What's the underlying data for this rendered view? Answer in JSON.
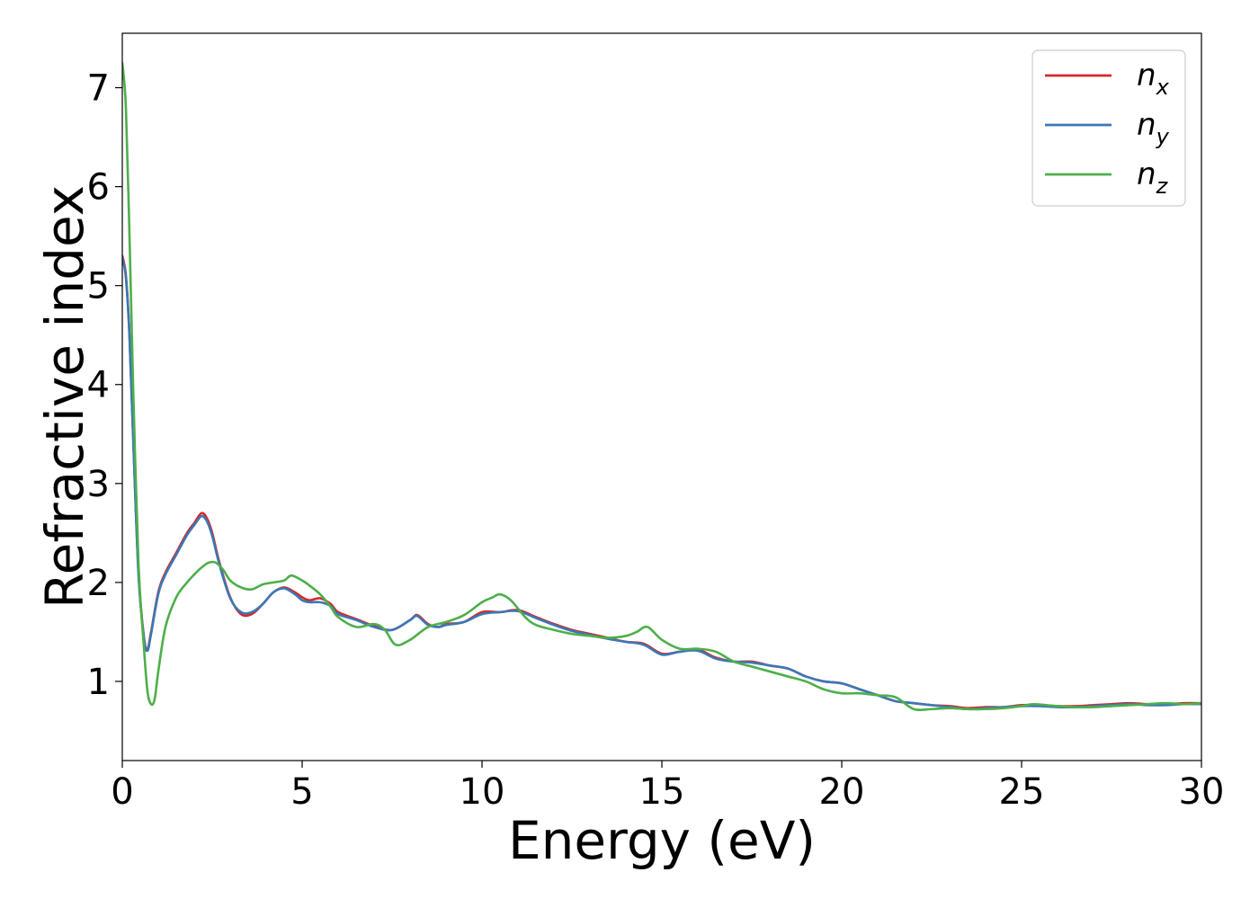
{
  "chart_data": {
    "type": "line",
    "xlabel": "Energy (eV)",
    "ylabel": "Refractive index",
    "xlim": [
      0,
      30
    ],
    "ylim": [
      0.2,
      7.55
    ],
    "xticks": [
      0,
      5,
      10,
      15,
      20,
      25,
      30
    ],
    "yticks": [
      1,
      2,
      3,
      4,
      5,
      6,
      7
    ],
    "grid": false,
    "legend_position": "top-right",
    "series": [
      {
        "name": "n_x",
        "name_main": "n",
        "name_sub": "x",
        "color": "#d62728",
        "x": [
          0,
          0.1,
          0.2,
          0.3,
          0.45,
          0.6,
          0.7,
          0.8,
          1.0,
          1.2,
          1.5,
          1.8,
          2.0,
          2.2,
          2.35,
          2.5,
          2.7,
          3.0,
          3.3,
          3.6,
          3.9,
          4.2,
          4.5,
          4.8,
          5.0,
          5.2,
          5.5,
          5.8,
          6.0,
          6.5,
          7.0,
          7.5,
          8.0,
          8.2,
          8.5,
          8.8,
          9.0,
          9.5,
          10.0,
          10.5,
          11.0,
          11.5,
          12.0,
          12.5,
          13.0,
          13.5,
          14.0,
          14.5,
          15.0,
          15.5,
          16.0,
          16.5,
          17.0,
          17.5,
          18.0,
          18.5,
          19.0,
          19.5,
          20.0,
          20.5,
          21.0,
          21.5,
          22.0,
          22.5,
          23.0,
          23.5,
          24.0,
          24.5,
          25.0,
          25.5,
          26.0,
          26.5,
          27.0,
          27.5,
          28.0,
          28.5,
          29.0,
          29.5,
          30.0
        ],
        "y": [
          5.3,
          5.1,
          4.5,
          3.5,
          2.1,
          1.45,
          1.33,
          1.5,
          1.9,
          2.1,
          2.3,
          2.5,
          2.6,
          2.7,
          2.65,
          2.5,
          2.2,
          1.85,
          1.68,
          1.68,
          1.78,
          1.9,
          1.95,
          1.9,
          1.85,
          1.82,
          1.84,
          1.78,
          1.7,
          1.63,
          1.56,
          1.52,
          1.62,
          1.67,
          1.58,
          1.55,
          1.58,
          1.6,
          1.7,
          1.7,
          1.72,
          1.65,
          1.58,
          1.52,
          1.48,
          1.44,
          1.4,
          1.38,
          1.28,
          1.3,
          1.32,
          1.24,
          1.2,
          1.2,
          1.16,
          1.13,
          1.05,
          1.0,
          0.98,
          0.92,
          0.86,
          0.8,
          0.78,
          0.76,
          0.75,
          0.73,
          0.74,
          0.74,
          0.76,
          0.76,
          0.75,
          0.75,
          0.76,
          0.77,
          0.78,
          0.77,
          0.77,
          0.78,
          0.78
        ]
      },
      {
        "name": "n_y",
        "name_main": "n",
        "name_sub": "y",
        "color": "#3a78b6",
        "x": [
          0,
          0.1,
          0.2,
          0.3,
          0.45,
          0.6,
          0.7,
          0.8,
          1.0,
          1.2,
          1.5,
          1.8,
          2.0,
          2.2,
          2.35,
          2.5,
          2.7,
          3.0,
          3.3,
          3.6,
          3.9,
          4.2,
          4.5,
          4.8,
          5.0,
          5.2,
          5.5,
          5.8,
          6.0,
          6.5,
          7.0,
          7.5,
          8.0,
          8.2,
          8.5,
          8.8,
          9.0,
          9.5,
          10.0,
          10.5,
          11.0,
          11.5,
          12.0,
          12.5,
          13.0,
          13.5,
          14.0,
          14.5,
          15.0,
          15.5,
          16.0,
          16.5,
          17.0,
          17.5,
          18.0,
          18.5,
          19.0,
          19.5,
          20.0,
          20.5,
          21.0,
          21.5,
          22.0,
          22.5,
          23.0,
          23.5,
          24.0,
          24.5,
          25.0,
          25.5,
          26.0,
          26.5,
          27.0,
          27.5,
          28.0,
          28.5,
          29.0,
          29.5,
          30.0
        ],
        "y": [
          5.28,
          5.08,
          4.48,
          3.48,
          2.08,
          1.44,
          1.31,
          1.48,
          1.88,
          2.08,
          2.28,
          2.48,
          2.58,
          2.67,
          2.62,
          2.47,
          2.18,
          1.84,
          1.7,
          1.7,
          1.78,
          1.9,
          1.94,
          1.88,
          1.82,
          1.8,
          1.8,
          1.76,
          1.68,
          1.62,
          1.55,
          1.52,
          1.62,
          1.66,
          1.57,
          1.55,
          1.57,
          1.6,
          1.68,
          1.7,
          1.71,
          1.64,
          1.57,
          1.51,
          1.47,
          1.43,
          1.4,
          1.37,
          1.27,
          1.3,
          1.31,
          1.23,
          1.2,
          1.19,
          1.16,
          1.13,
          1.05,
          1.0,
          0.98,
          0.92,
          0.86,
          0.8,
          0.78,
          0.76,
          0.74,
          0.72,
          0.73,
          0.74,
          0.75,
          0.75,
          0.74,
          0.74,
          0.75,
          0.76,
          0.77,
          0.76,
          0.76,
          0.77,
          0.77
        ]
      },
      {
        "name": "n_z",
        "name_main": "n",
        "name_sub": "z",
        "color": "#4daf4a",
        "x": [
          0,
          0.1,
          0.2,
          0.3,
          0.45,
          0.6,
          0.7,
          0.8,
          0.9,
          1.0,
          1.2,
          1.5,
          1.8,
          2.0,
          2.2,
          2.4,
          2.6,
          2.8,
          3.0,
          3.3,
          3.6,
          3.9,
          4.2,
          4.5,
          4.7,
          5.0,
          5.2,
          5.5,
          5.8,
          6.0,
          6.5,
          7.0,
          7.3,
          7.6,
          8.0,
          8.5,
          9.0,
          9.5,
          10.0,
          10.3,
          10.5,
          10.8,
          11.2,
          11.5,
          12.0,
          12.5,
          13.0,
          13.5,
          14.0,
          14.3,
          14.6,
          15.0,
          15.5,
          16.0,
          16.5,
          17.0,
          17.5,
          18.0,
          18.5,
          19.0,
          19.5,
          20.0,
          20.5,
          21.0,
          21.5,
          22.0,
          22.5,
          23.0,
          23.5,
          24.0,
          24.5,
          25.0,
          25.3,
          25.7,
          26.0,
          26.5,
          27.0,
          27.5,
          28.0,
          28.5,
          29.0,
          29.5,
          30.0
        ],
        "y": [
          7.25,
          6.8,
          5.5,
          4.0,
          2.2,
          1.35,
          0.9,
          0.77,
          0.82,
          1.1,
          1.55,
          1.85,
          2.0,
          2.08,
          2.15,
          2.2,
          2.2,
          2.13,
          2.02,
          1.95,
          1.93,
          1.98,
          2.0,
          2.02,
          2.07,
          2.02,
          1.97,
          1.88,
          1.75,
          1.65,
          1.55,
          1.58,
          1.52,
          1.37,
          1.42,
          1.55,
          1.6,
          1.67,
          1.8,
          1.85,
          1.88,
          1.82,
          1.65,
          1.57,
          1.52,
          1.48,
          1.46,
          1.44,
          1.46,
          1.5,
          1.55,
          1.42,
          1.33,
          1.33,
          1.3,
          1.2,
          1.15,
          1.1,
          1.05,
          1.0,
          0.92,
          0.88,
          0.88,
          0.86,
          0.84,
          0.72,
          0.72,
          0.73,
          0.72,
          0.72,
          0.73,
          0.75,
          0.77,
          0.76,
          0.75,
          0.74,
          0.74,
          0.75,
          0.76,
          0.77,
          0.78,
          0.77,
          0.78
        ]
      }
    ]
  }
}
